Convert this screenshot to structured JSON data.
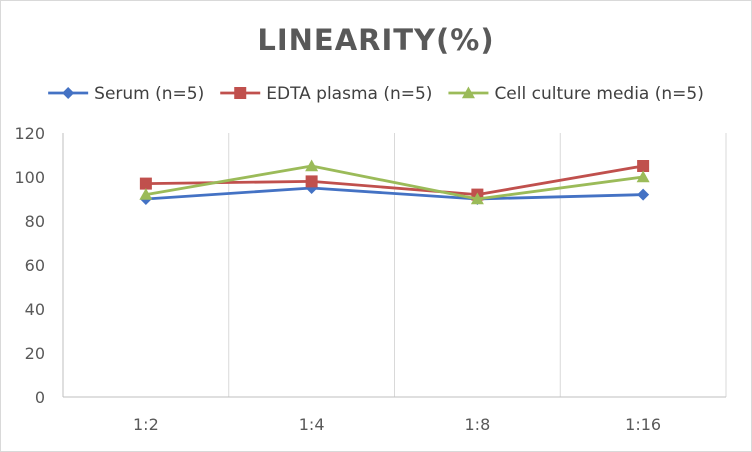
{
  "chart_data": {
    "type": "line",
    "title": "LINEARITY(%)",
    "xlabel": "",
    "ylabel": "",
    "categories": [
      "1:2",
      "1:4",
      "1:8",
      "1:16"
    ],
    "ylim": [
      0,
      120
    ],
    "yticks": [
      0,
      20,
      40,
      60,
      80,
      100,
      120
    ],
    "grid": "vertical",
    "legend_position": "top",
    "series": [
      {
        "name": "Serum (n=5)",
        "values": [
          90,
          95,
          90,
          92
        ],
        "color": "#4472c4",
        "marker": "diamond"
      },
      {
        "name": "EDTA plasma (n=5)",
        "values": [
          97,
          98,
          92,
          105
        ],
        "color": "#c0504d",
        "marker": "square"
      },
      {
        "name": "Cell culture media (n=5)",
        "values": [
          92,
          105,
          90,
          100
        ],
        "color": "#9bbb59",
        "marker": "triangle"
      }
    ]
  }
}
